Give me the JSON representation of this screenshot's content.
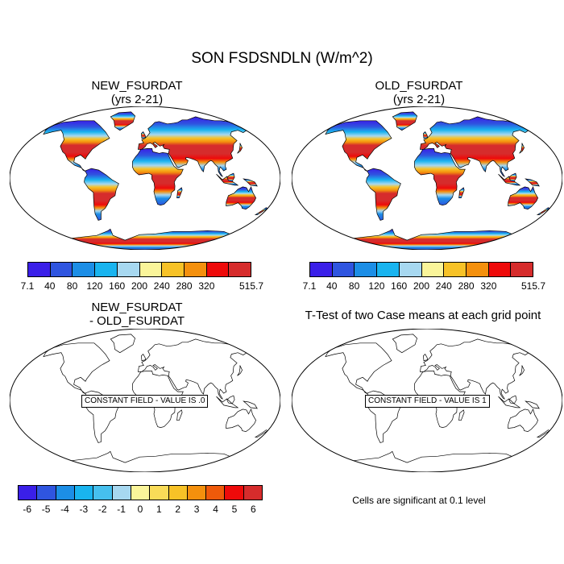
{
  "title": "SON FSDSNDLN (W/m^2)",
  "panels": [
    {
      "title_line1": "NEW_FSURDAT",
      "title_line2": "(yrs 2-21)",
      "type": "filled"
    },
    {
      "title_line1": "OLD_FSURDAT",
      "title_line2": "(yrs 2-21)",
      "type": "filled"
    },
    {
      "title_line1": "NEW_FSURDAT",
      "title_line2": "- OLD_FSURDAT",
      "type": "difference",
      "constant_label": "CONSTANT FIELD - VALUE IS .0"
    },
    {
      "title_line1": "T-Test of two Case means at each grid point",
      "type": "ttest",
      "constant_label": "CONSTANT FIELD - VALUE IS 1"
    }
  ],
  "colorbar_top": {
    "labels": [
      "7.1",
      "40",
      "80",
      "120",
      "160",
      "200",
      "240",
      "280",
      "320",
      "515.7"
    ],
    "colors": [
      "#3a1fe8",
      "#2f55e0",
      "#1c8ee6",
      "#19b4ef",
      "#a7d8f0",
      "#faf59a",
      "#f7c227",
      "#f4900d",
      "#ee0a0a",
      "#d62c2c"
    ]
  },
  "colorbar_diff": {
    "labels": [
      "-6",
      "-5",
      "-4",
      "-3",
      "-2",
      "-1",
      "0",
      "1",
      "2",
      "3",
      "4",
      "5",
      "6"
    ],
    "colors": [
      "#3a1fe8",
      "#2f55e0",
      "#1c8ee6",
      "#19b4ef",
      "#46c0ee",
      "#a7d8f0",
      "#faf59a",
      "#f9dc58",
      "#f7c227",
      "#f4900d",
      "#ef5a0a",
      "#ee0a0a",
      "#d62c2c"
    ]
  },
  "significance_note": "Cells are significant at 0.1 level"
}
